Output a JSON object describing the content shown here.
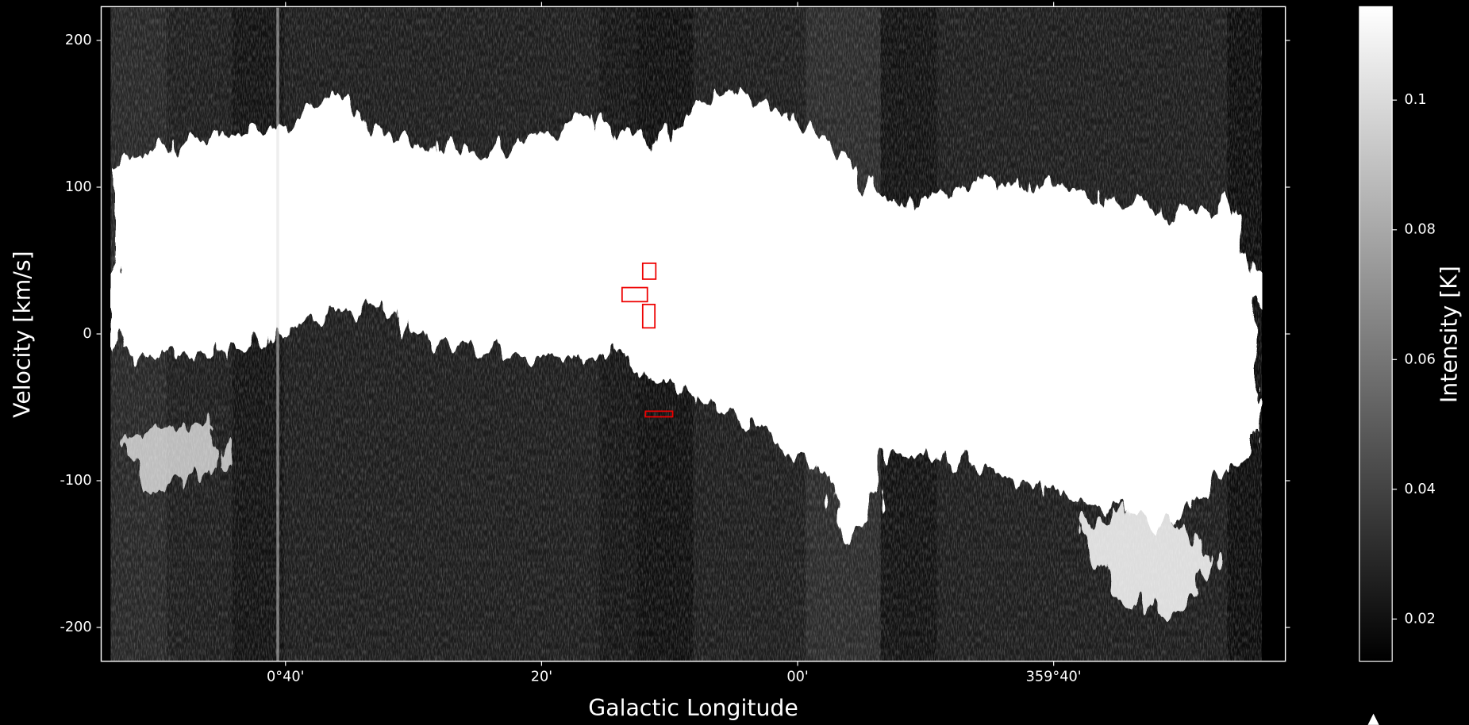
{
  "chart_data": {
    "type": "image",
    "xlabel": "Galactic Longitude",
    "ylabel": "Velocity [km/s]",
    "xlim": [
      54.4,
      -38.1
    ],
    "xticks": [
      {
        "value": 40,
        "label": "0°40'"
      },
      {
        "value": 20,
        "label": "20'"
      },
      {
        "value": 0,
        "label": "00'"
      },
      {
        "value": -20,
        "label": "359°40'"
      }
    ],
    "ylim": [
      -223,
      223
    ],
    "yticks": [
      -200,
      -100,
      0,
      100,
      200
    ],
    "colorbar": {
      "label": "Intensity [K]",
      "lim": [
        0.0135,
        0.1144
      ],
      "ticks": [
        0.02,
        0.04,
        0.06,
        0.08,
        0.1
      ],
      "colormap": "gray"
    }
  }
}
